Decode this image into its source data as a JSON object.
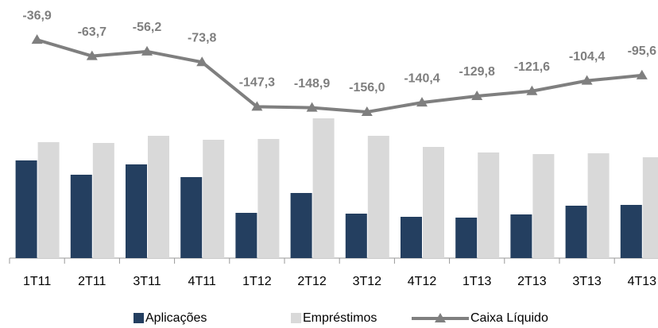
{
  "chart_data": {
    "type": "bar_line",
    "categories": [
      "1T11",
      "2T11",
      "3T11",
      "4T11",
      "1T12",
      "2T12",
      "3T12",
      "4T12",
      "1T13",
      "2T13",
      "3T13",
      "4T13"
    ],
    "ylim": [
      0,
      300
    ],
    "y2lim": [
      -397,
      -4
    ],
    "series": [
      {
        "name": "Aplicações",
        "color": "#243f60",
        "values": [
          123,
          105,
          118,
          102,
          57,
          82,
          56,
          52,
          51,
          55,
          66,
          67
        ]
      },
      {
        "name": "Empréstimos",
        "color": "#d9d9d9",
        "values": [
          146,
          145,
          154,
          149,
          150,
          176,
          154,
          140,
          133,
          131,
          132,
          127
        ]
      },
      {
        "name": "Caixa Líquido",
        "color": "#7f7f7f",
        "axis": "y2",
        "type": "line",
        "values": [
          -36.9,
          -63.7,
          -56.2,
          -73.8,
          -147.3,
          -148.9,
          -156.0,
          -140.4,
          -129.8,
          -121.6,
          -104.4,
          -95.6
        ],
        "value_labels": [
          "-36,9",
          "-63,7",
          "-56,2",
          "-73,8",
          "-147,3",
          "-148,9",
          "-156,0",
          "-140,4",
          "-129,8",
          "-121,6",
          "-104,4",
          "-95,6"
        ]
      }
    ]
  }
}
